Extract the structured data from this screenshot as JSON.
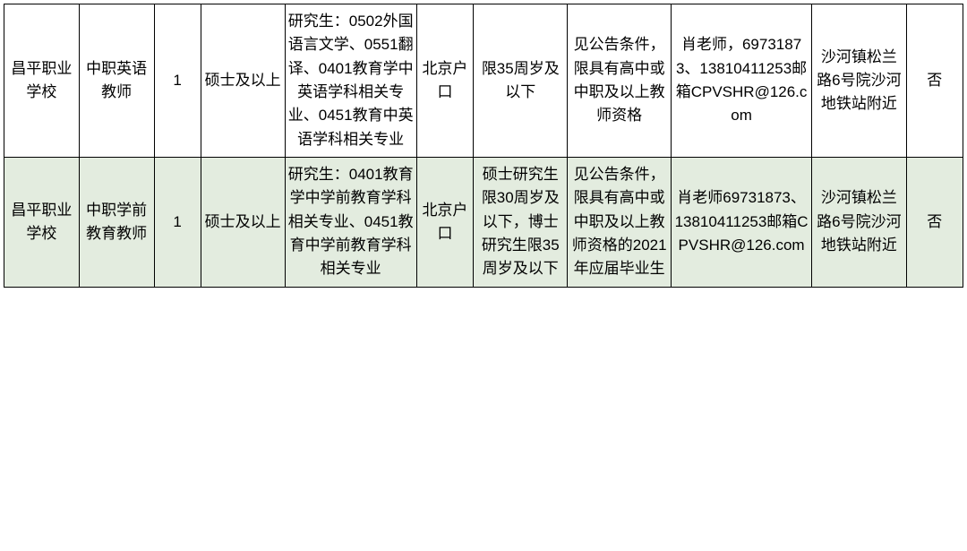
{
  "table": {
    "background_color": "#ffffff",
    "border_color": "#000000",
    "text_color": "#000000",
    "font_size_pt": 13,
    "row_alt_bg": "#e3ecdf",
    "columns": [
      {
        "key": "school",
        "width_pct": 7.4
      },
      {
        "key": "position",
        "width_pct": 7.4
      },
      {
        "key": "count",
        "width_pct": 4.6
      },
      {
        "key": "degree",
        "width_pct": 8.3
      },
      {
        "key": "major",
        "width_pct": 13.0
      },
      {
        "key": "hukou",
        "width_pct": 5.6
      },
      {
        "key": "age",
        "width_pct": 9.3
      },
      {
        "key": "other",
        "width_pct": 10.2
      },
      {
        "key": "contact",
        "width_pct": 13.9
      },
      {
        "key": "address",
        "width_pct": 9.3
      },
      {
        "key": "flag",
        "width_pct": 5.6
      }
    ],
    "rows": [
      {
        "school": "昌平职业学校",
        "position": "中职英语教师",
        "count": "1",
        "degree": "硕士及以上",
        "major": "研究生：0502外国语言文学、0551翻译、0401教育学中英语学科相关专业、0451教育中英语学科相关专业",
        "hukou": "北京户口",
        "age": "限35周岁及以下",
        "other": "见公告条件，限具有高中或中职及以上教师资格",
        "contact": "肖老师，69731873、13810411253邮箱CPVSHR@126.com",
        "address": "沙河镇松兰路6号院沙河地铁站附近",
        "flag": "否"
      },
      {
        "school": "昌平职业学校",
        "position": "中职学前教育教师",
        "count": "1",
        "degree": "硕士及以上",
        "major": "研究生：0401教育学中学前教育学科相关专业、0451教育中学前教育学科相关专业",
        "hukou": "北京户口",
        "age": "硕士研究生限30周岁及以下，博士研究生限35周岁及以下",
        "other": "见公告条件，限具有高中或中职及以上教师资格的2021年应届毕业生",
        "contact": "肖老师69731873、13810411253邮箱CPVSHR@126.com",
        "address": "沙河镇松兰路6号院沙河地铁站附近",
        "flag": "否"
      }
    ]
  }
}
